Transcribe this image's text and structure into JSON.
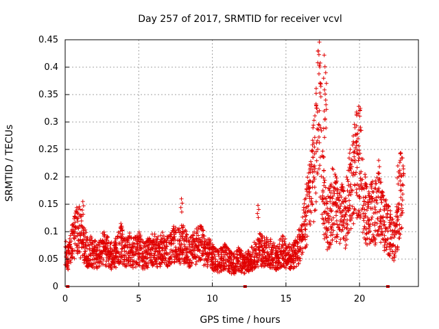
{
  "chart_data": {
    "type": "scatter",
    "title": "Day 257 of 2017, SRMTID for receiver vcvl",
    "xlabel": "GPS time / hours",
    "ylabel": "SRMTID / TECUs",
    "xlim": [
      0,
      24
    ],
    "ylim": [
      0,
      0.45
    ],
    "xticks": [
      0,
      5,
      10,
      15,
      20
    ],
    "yticks": [
      0,
      0.05,
      0.1,
      0.15,
      0.2,
      0.25,
      0.3,
      0.35,
      0.4,
      0.45
    ],
    "xtick_labels": [
      "0",
      "5",
      "10",
      "15",
      "20"
    ],
    "ytick_labels": [
      "0",
      "0.05",
      "0.1",
      "0.15",
      "0.2",
      "0.25",
      "0.3",
      "0.35",
      "0.4",
      "0.45"
    ],
    "grid": true,
    "marker": "+",
    "color": "#e00000",
    "series": [
      {
        "name": "SRMTID",
        "x": [
          0.0,
          0.2,
          0.4,
          0.6,
          0.8,
          1.0,
          1.2,
          1.4,
          1.6,
          1.8,
          2.0,
          2.2,
          2.4,
          2.6,
          2.8,
          3.0,
          3.2,
          3.4,
          3.6,
          3.8,
          4.0,
          4.2,
          4.4,
          4.6,
          4.8,
          5.0,
          5.2,
          5.4,
          5.6,
          5.8,
          6.0,
          6.2,
          6.4,
          6.6,
          6.8,
          7.0,
          7.2,
          7.4,
          7.6,
          7.8,
          8.0,
          8.2,
          8.4,
          8.6,
          8.8,
          9.0,
          9.2,
          9.4,
          9.6,
          9.8,
          10.0,
          10.2,
          10.4,
          10.6,
          10.8,
          11.0,
          11.2,
          11.4,
          11.6,
          11.8,
          12.0,
          12.2,
          12.4,
          12.6,
          12.8,
          13.0,
          13.2,
          13.4,
          13.6,
          13.8,
          14.0,
          14.2,
          14.4,
          14.6,
          14.8,
          15.0,
          15.2,
          15.4,
          15.6,
          15.8,
          16.0,
          16.2,
          16.4,
          16.6,
          16.8,
          17.0,
          17.2,
          17.4,
          17.6,
          17.8,
          18.0,
          18.2,
          18.4,
          18.6,
          18.8,
          19.0,
          19.2,
          19.4,
          19.6,
          19.8,
          20.0,
          20.2,
          20.4,
          20.6,
          20.8,
          21.0,
          21.2,
          21.4,
          21.6,
          21.8,
          22.0,
          22.2,
          22.4,
          22.6,
          22.8
        ],
        "y": [
          0.06,
          0.05,
          0.07,
          0.09,
          0.11,
          0.1,
          0.08,
          0.07,
          0.06,
          0.065,
          0.06,
          0.055,
          0.06,
          0.07,
          0.065,
          0.06,
          0.055,
          0.06,
          0.07,
          0.08,
          0.065,
          0.06,
          0.07,
          0.06,
          0.065,
          0.07,
          0.06,
          0.055,
          0.06,
          0.065,
          0.07,
          0.06,
          0.065,
          0.07,
          0.06,
          0.065,
          0.07,
          0.08,
          0.07,
          0.075,
          0.08,
          0.07,
          0.06,
          0.065,
          0.07,
          0.075,
          0.08,
          0.07,
          0.065,
          0.06,
          0.055,
          0.05,
          0.045,
          0.05,
          0.055,
          0.05,
          0.045,
          0.04,
          0.045,
          0.05,
          0.045,
          0.04,
          0.045,
          0.05,
          0.055,
          0.06,
          0.07,
          0.065,
          0.06,
          0.065,
          0.06,
          0.055,
          0.05,
          0.06,
          0.065,
          0.06,
          0.055,
          0.05,
          0.06,
          0.07,
          0.08,
          0.1,
          0.13,
          0.17,
          0.2,
          0.22,
          0.35,
          0.25,
          0.15,
          0.12,
          0.13,
          0.16,
          0.14,
          0.12,
          0.13,
          0.12,
          0.15,
          0.18,
          0.2,
          0.22,
          0.24,
          0.18,
          0.14,
          0.12,
          0.15,
          0.13,
          0.14,
          0.15,
          0.12,
          0.11,
          0.1,
          0.09,
          0.08,
          0.12,
          0.18
        ],
        "peaks": [
          {
            "x": 1.2,
            "y": 0.155
          },
          {
            "x": 7.9,
            "y": 0.16
          },
          {
            "x": 13.1,
            "y": 0.148
          },
          {
            "x": 17.6,
            "y": 0.422
          },
          {
            "x": 17.7,
            "y": 0.39
          },
          {
            "x": 17.7,
            "y": 0.34
          },
          {
            "x": 17.6,
            "y": 0.32
          },
          {
            "x": 19.8,
            "y": 0.293
          },
          {
            "x": 19.9,
            "y": 0.27
          },
          {
            "x": 21.3,
            "y": 0.23
          },
          {
            "x": 22.6,
            "y": 0.22
          }
        ]
      }
    ],
    "gap_markers_x": [
      0.15,
      12.2,
      21.9
    ]
  }
}
